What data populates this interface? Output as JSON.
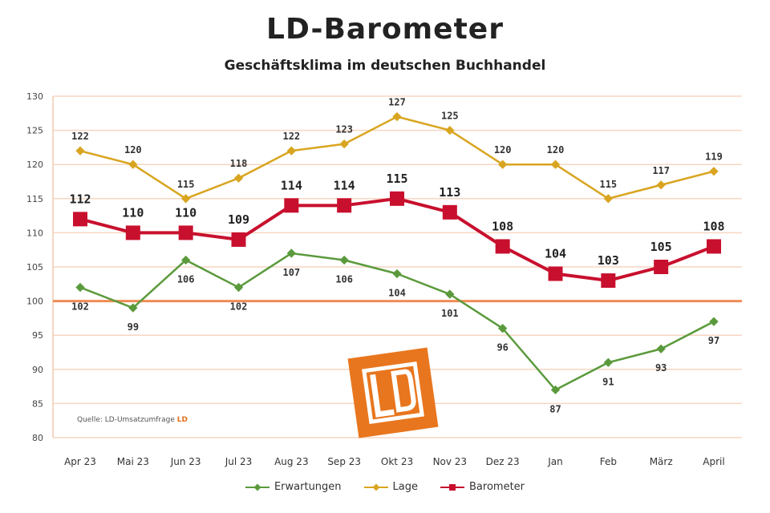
{
  "title": "LD-Barometer",
  "subtitle": "Geschäftsklima im deutschen Buchhandel",
  "source": {
    "text": "Quelle: LD-Umsatzumfrage",
    "brand": "LD"
  },
  "logo": {
    "name": "ld-logo-icon",
    "text": "LD"
  },
  "legend": [
    {
      "name": "Erwartungen",
      "color": "#5b9a3c"
    },
    {
      "name": "Lage",
      "color": "#d9a520"
    },
    {
      "name": "Barometer",
      "color": "#c8102e"
    }
  ],
  "chart_data": {
    "type": "line",
    "title": "LD-Barometer",
    "subtitle": "Geschäftsklima im deutschen Buchhandel",
    "categories": [
      "Apr 23",
      "Mai 23",
      "Jun 23",
      "Jul 23",
      "Aug 23",
      "Sep 23",
      "Okt 23",
      "Nov 23",
      "Dez 23",
      "Jan",
      "Feb",
      "März",
      "April"
    ],
    "ylim": [
      80,
      130
    ],
    "yticks": [
      80,
      85,
      90,
      95,
      100,
      105,
      110,
      115,
      120,
      125,
      130
    ],
    "reference_line": 100,
    "grid": true,
    "legend_position": "bottom",
    "series": [
      {
        "name": "Erwartungen",
        "color": "#5b9a3c",
        "values": [
          102,
          99,
          106,
          102,
          107,
          106,
          104,
          101,
          96,
          87,
          91,
          93,
          97
        ],
        "labels": [
          "102",
          "99",
          "106",
          "102",
          "107",
          "106",
          "104",
          "101",
          "96",
          "87",
          "91",
          "93",
          "97"
        ]
      },
      {
        "name": "Lage",
        "color": "#d9a520",
        "values": [
          122,
          120,
          115,
          118,
          122,
          123,
          127,
          125,
          120,
          120,
          115,
          117,
          119
        ],
        "labels": [
          "122",
          "120",
          "115",
          "118",
          "122",
          "123",
          "127",
          "125",
          "120",
          "120",
          "115",
          "117",
          "119"
        ]
      },
      {
        "name": "Barometer",
        "color": "#c8102e",
        "values": [
          112,
          110,
          110,
          109,
          114,
          114,
          115,
          113,
          108,
          104,
          103,
          105,
          108
        ],
        "labels": [
          "112",
          "110",
          "110",
          "109",
          "114",
          "114",
          "115",
          "113",
          "108",
          "104",
          "103",
          "105",
          "108"
        ]
      }
    ]
  }
}
